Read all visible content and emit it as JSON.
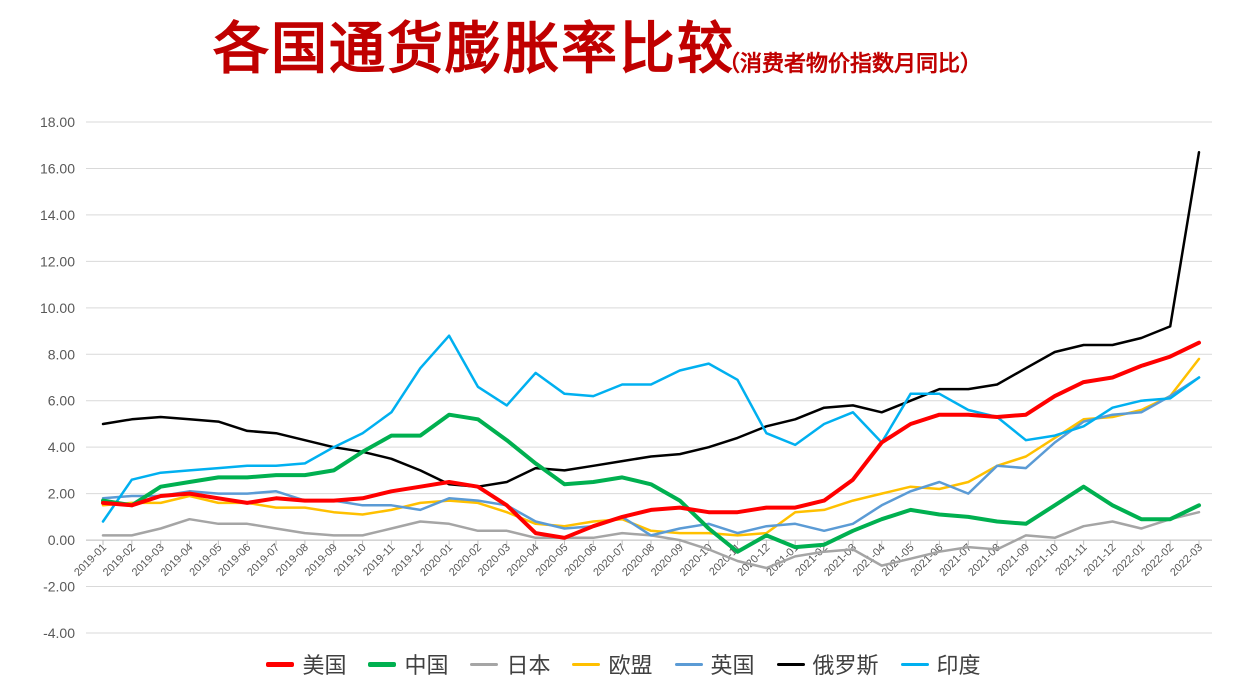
{
  "chart_data": {
    "type": "line",
    "title": "各国通货膨胀率比较",
    "subtitle": "（消费者物价指数月同比）",
    "ylim": [
      -4,
      18
    ],
    "yticks": [
      "-4.00",
      "-2.00",
      "0.00",
      "2.00",
      "4.00",
      "6.00",
      "8.00",
      "10.00",
      "12.00",
      "14.00",
      "16.00",
      "18.00"
    ],
    "ytick_values": [
      -4,
      -2,
      0,
      2,
      4,
      6,
      8,
      10,
      12,
      14,
      16,
      18
    ],
    "categories": [
      "2019-01",
      "2019-02",
      "2019-03",
      "2019-04",
      "2019-05",
      "2019-06",
      "2019-07",
      "2019-08",
      "2019-09",
      "2019-10",
      "2019-11",
      "2019-12",
      "2020-01",
      "2020-02",
      "2020-03",
      "2020-04",
      "2020-05",
      "2020-06",
      "2020-07",
      "2020-08",
      "2020-09",
      "2020-10",
      "2020-11",
      "2020-12",
      "2021-01",
      "2021-02",
      "2021-03",
      "2021-04",
      "2021-05",
      "2021-06",
      "2021-07",
      "2021-08",
      "2021-09",
      "2021-10",
      "2021-11",
      "2021-12",
      "2022-01",
      "2022-02",
      "2022-03"
    ],
    "grid": true,
    "legend_position": "bottom",
    "series": [
      {
        "name": "美国",
        "color": "#ff0000",
        "width": 4,
        "values": [
          1.6,
          1.5,
          1.9,
          2.0,
          1.8,
          1.6,
          1.8,
          1.7,
          1.7,
          1.8,
          2.1,
          2.3,
          2.5,
          2.3,
          1.5,
          0.3,
          0.1,
          0.6,
          1.0,
          1.3,
          1.4,
          1.2,
          1.2,
          1.4,
          1.4,
          1.7,
          2.6,
          4.2,
          5.0,
          5.4,
          5.4,
          5.3,
          5.4,
          6.2,
          6.8,
          7.0,
          7.5,
          7.9,
          8.5
        ]
      },
      {
        "name": "中国",
        "color": "#00b050",
        "width": 4,
        "values": [
          1.7,
          1.5,
          2.3,
          2.5,
          2.7,
          2.7,
          2.8,
          2.8,
          3.0,
          3.8,
          4.5,
          4.5,
          5.4,
          5.2,
          4.3,
          3.3,
          2.4,
          2.5,
          2.7,
          2.4,
          1.7,
          0.5,
          -0.5,
          0.2,
          -0.3,
          -0.2,
          0.4,
          0.9,
          1.3,
          1.1,
          1.0,
          0.8,
          0.7,
          1.5,
          2.3,
          1.5,
          0.9,
          0.9,
          1.5
        ]
      },
      {
        "name": "日本",
        "color": "#a5a5a5",
        "width": 2.5,
        "values": [
          0.2,
          0.2,
          0.5,
          0.9,
          0.7,
          0.7,
          0.5,
          0.3,
          0.2,
          0.2,
          0.5,
          0.8,
          0.7,
          0.4,
          0.4,
          0.1,
          0.1,
          0.1,
          0.3,
          0.2,
          0.0,
          -0.4,
          -0.9,
          -1.2,
          -0.7,
          -0.5,
          -0.4,
          -1.1,
          -0.8,
          -0.5,
          -0.3,
          -0.4,
          0.2,
          0.1,
          0.6,
          0.8,
          0.5,
          0.9,
          1.2
        ]
      },
      {
        "name": "欧盟",
        "color": "#ffc000",
        "width": 2.5,
        "values": [
          1.5,
          1.6,
          1.6,
          1.9,
          1.6,
          1.6,
          1.4,
          1.4,
          1.2,
          1.1,
          1.3,
          1.6,
          1.7,
          1.6,
          1.2,
          0.7,
          0.6,
          0.8,
          0.9,
          0.4,
          0.3,
          0.3,
          0.2,
          0.3,
          1.2,
          1.3,
          1.7,
          2.0,
          2.3,
          2.2,
          2.5,
          3.2,
          3.6,
          4.4,
          5.2,
          5.3,
          5.6,
          6.2,
          7.8
        ]
      },
      {
        "name": "英国",
        "color": "#5b9bd5",
        "width": 2.5,
        "values": [
          1.8,
          1.9,
          1.9,
          2.1,
          2.0,
          2.0,
          2.1,
          1.7,
          1.7,
          1.5,
          1.5,
          1.3,
          1.8,
          1.7,
          1.5,
          0.8,
          0.5,
          0.6,
          1.0,
          0.2,
          0.5,
          0.7,
          0.3,
          0.6,
          0.7,
          0.4,
          0.7,
          1.5,
          2.1,
          2.5,
          2.0,
          3.2,
          3.1,
          4.2,
          5.1,
          5.4,
          5.5,
          6.2,
          7.0
        ]
      },
      {
        "name": "俄罗斯",
        "color": "#000000",
        "width": 2.5,
        "values": [
          5.0,
          5.2,
          5.3,
          5.2,
          5.1,
          4.7,
          4.6,
          4.3,
          4.0,
          3.8,
          3.5,
          3.0,
          2.4,
          2.3,
          2.5,
          3.1,
          3.0,
          3.2,
          3.4,
          3.6,
          3.7,
          4.0,
          4.4,
          4.9,
          5.2,
          5.7,
          5.8,
          5.5,
          6.0,
          6.5,
          6.5,
          6.7,
          7.4,
          8.1,
          8.4,
          8.4,
          8.7,
          9.2,
          16.7
        ]
      },
      {
        "name": "印度",
        "color": "#00b0f0",
        "width": 2.5,
        "values": [
          0.8,
          2.6,
          2.9,
          3.0,
          3.1,
          3.2,
          3.2,
          3.3,
          4.0,
          4.6,
          5.5,
          7.4,
          8.8,
          6.6,
          5.8,
          7.2,
          6.3,
          6.2,
          6.7,
          6.7,
          7.3,
          7.6,
          6.9,
          4.6,
          4.1,
          5.0,
          5.5,
          4.2,
          6.3,
          6.3,
          5.6,
          5.3,
          4.3,
          4.5,
          4.9,
          5.7,
          6.0,
          6.1,
          7.0
        ]
      }
    ]
  }
}
